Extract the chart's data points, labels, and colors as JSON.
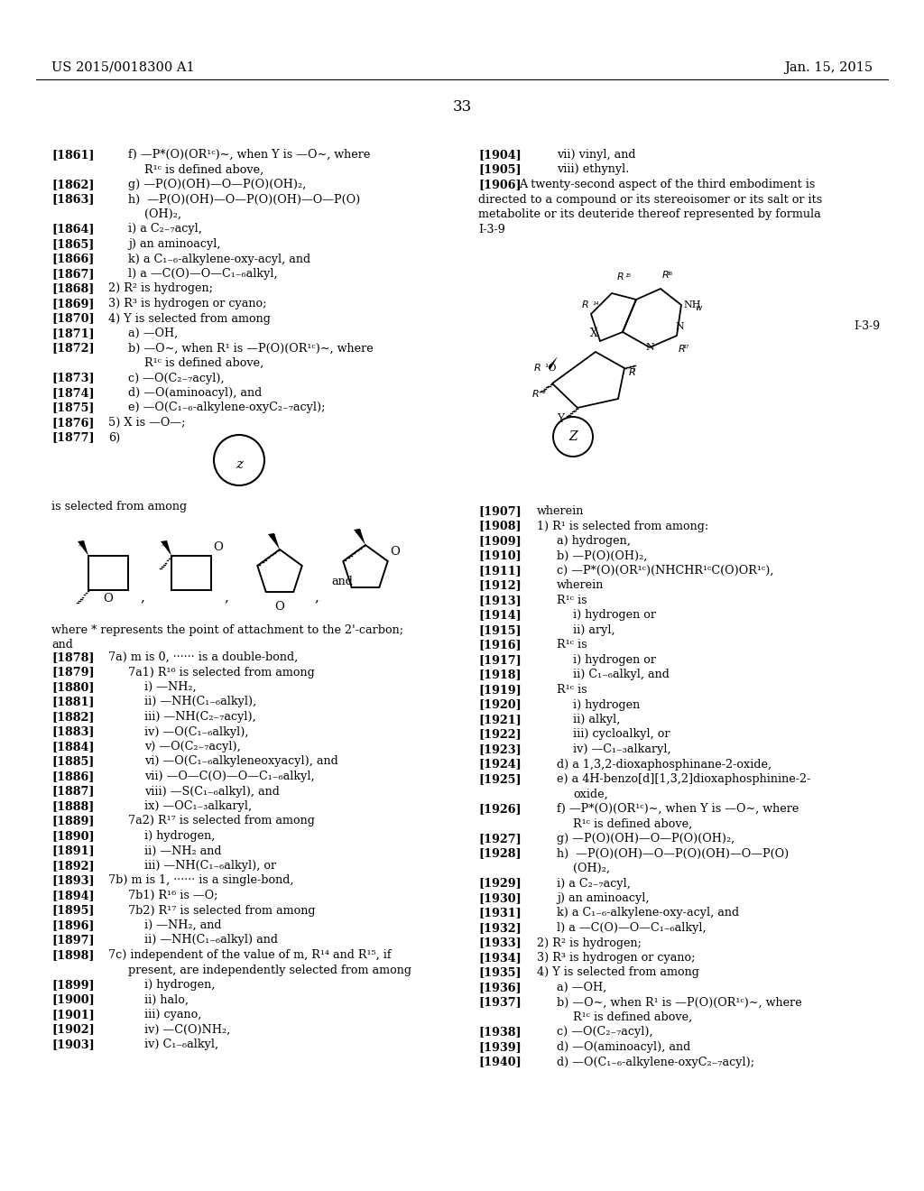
{
  "bg_color": "#ffffff",
  "header_left": "US 2015/0018300 A1",
  "header_right": "Jan. 15, 2015",
  "page_number": "33",
  "figsize": [
    10.24,
    13.2
  ],
  "dpi": 100
}
